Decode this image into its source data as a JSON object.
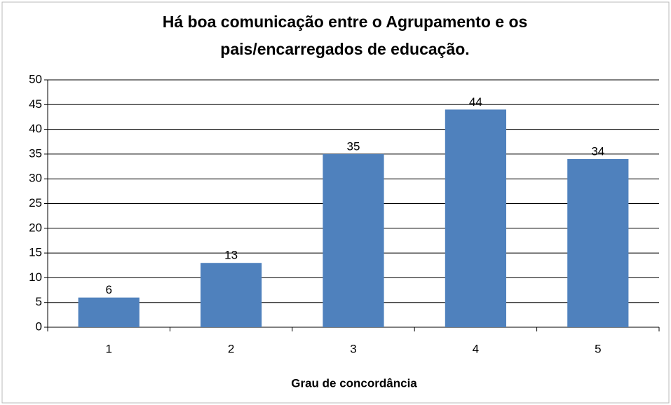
{
  "chart_data": {
    "type": "bar",
    "title": [
      "Há boa comunicação entre o Agrupamento e os",
      "pais/encarregados de educação."
    ],
    "xlabel": "Grau de concordância",
    "categories": [
      "1",
      "2",
      "3",
      "4",
      "5"
    ],
    "values": [
      6,
      13,
      35,
      44,
      34
    ],
    "color": "#4f81bd",
    "ylim": [
      0,
      50
    ],
    "yticks": [
      0,
      5,
      10,
      15,
      20,
      25,
      30,
      35,
      40,
      45,
      50
    ],
    "grid": true
  }
}
